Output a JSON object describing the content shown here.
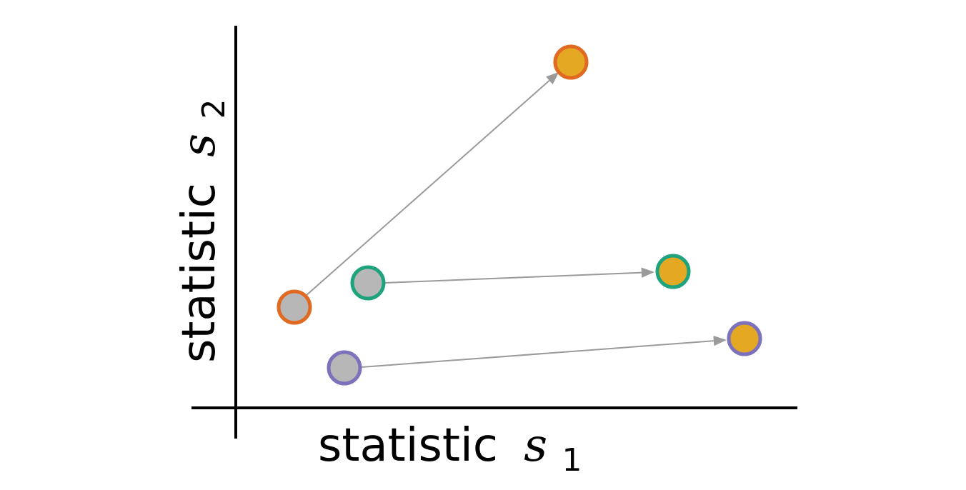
{
  "axes": {
    "x_label": {
      "word": "statistic",
      "symbol": "s",
      "subscript": "1"
    },
    "y_label": {
      "word": "statistic",
      "symbol": "s",
      "subscript": "2"
    }
  },
  "colors": {
    "axis": "#000000",
    "arrow": "#9a9a9a",
    "start_fill": "#b7b7b7",
    "end_fill": "#e5a823"
  },
  "pairs": [
    {
      "name": "orange",
      "color": "#e06a21"
    },
    {
      "name": "green",
      "color": "#1fa37c"
    },
    {
      "name": "purple",
      "color": "#7b72bb"
    }
  ]
}
